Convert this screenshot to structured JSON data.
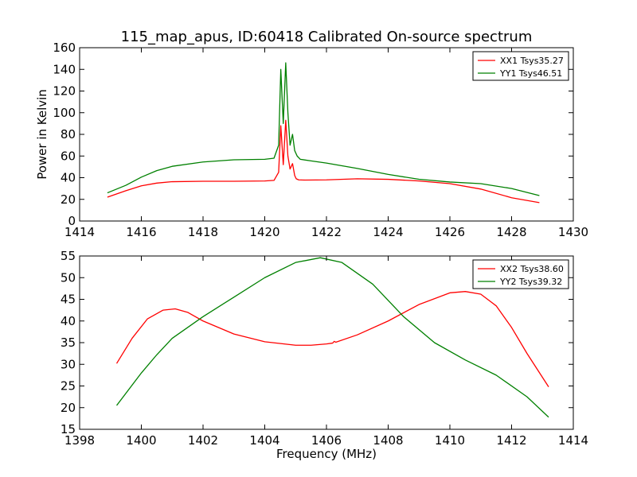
{
  "chart_data": [
    {
      "type": "line",
      "title": "115_map_apus, ID:60418 Calibrated On-source spectrum",
      "xlabel": "",
      "ylabel": "Power in Kelvin",
      "xlim": [
        1414,
        1430
      ],
      "ylim": [
        0,
        160
      ],
      "xticks": [
        "1414",
        "1416",
        "1418",
        "1420",
        "1422",
        "1424",
        "1426",
        "1428",
        "1430"
      ],
      "yticks": [
        "0",
        "20",
        "40",
        "60",
        "80",
        "100",
        "120",
        "140",
        "160"
      ],
      "legend_position": "top-right",
      "series": [
        {
          "name": "XX1 Tsys35.27",
          "color": "#ff0000",
          "x": [
            1414.9,
            1415.5,
            1416,
            1416.5,
            1417,
            1418,
            1419,
            1420,
            1420.3,
            1420.45,
            1420.52,
            1420.6,
            1420.68,
            1420.75,
            1420.82,
            1420.9,
            1420.97,
            1421.02,
            1421.1,
            1421.3,
            1422,
            1423,
            1424,
            1425,
            1426,
            1427,
            1428,
            1428.9
          ],
          "y": [
            22,
            28,
            32.5,
            35,
            36.3,
            36.7,
            36.7,
            37,
            37.5,
            45,
            88,
            52,
            93,
            60,
            48,
            53,
            42,
            39,
            38,
            37.8,
            38,
            39,
            38.5,
            37,
            34.5,
            29.5,
            21.5,
            17
          ]
        },
        {
          "name": "YY1 Tsys46.51",
          "color": "#008000",
          "x": [
            1414.9,
            1415.5,
            1416,
            1416.5,
            1417,
            1418,
            1419,
            1420,
            1420.3,
            1420.45,
            1420.52,
            1420.6,
            1420.68,
            1420.75,
            1420.82,
            1420.9,
            1420.97,
            1421.05,
            1421.15,
            1421.5,
            1422,
            1423,
            1424,
            1425,
            1426,
            1427,
            1428,
            1428.9
          ],
          "y": [
            26,
            33,
            40.5,
            46.5,
            50.5,
            54.5,
            56.5,
            57,
            58,
            70,
            140,
            90,
            146,
            100,
            70,
            80,
            65,
            60,
            57,
            55.5,
            53.5,
            48.5,
            43,
            38.5,
            36,
            34.5,
            30,
            23.5
          ]
        }
      ]
    },
    {
      "type": "line",
      "title": "",
      "xlabel": "Frequency (MHz)",
      "ylabel": "",
      "xlim": [
        1398,
        1414
      ],
      "ylim": [
        15,
        55
      ],
      "xticks": [
        "1398",
        "1400",
        "1402",
        "1404",
        "1406",
        "1408",
        "1410",
        "1412",
        "1414"
      ],
      "yticks": [
        "15",
        "20",
        "25",
        "30",
        "35",
        "40",
        "45",
        "50",
        "55"
      ],
      "legend_position": "top-right",
      "series": [
        {
          "name": "XX2 Tsys38.60",
          "color": "#ff0000",
          "x": [
            1399.2,
            1399.7,
            1400.2,
            1400.7,
            1401.1,
            1401.5,
            1402,
            1403,
            1404,
            1405,
            1405.5,
            1406,
            1406.2,
            1406.25,
            1406.3,
            1407,
            1408,
            1409,
            1410,
            1410.5,
            1411,
            1411.5,
            1412,
            1412.5,
            1413.2
          ],
          "y": [
            30.2,
            36,
            40.5,
            42.5,
            42.8,
            42,
            40,
            37,
            35.2,
            34.4,
            34.4,
            34.7,
            34.9,
            35.3,
            35.1,
            36.8,
            40,
            43.8,
            46.5,
            46.8,
            46.2,
            43.5,
            38.5,
            32.5,
            24.8
          ]
        },
        {
          "name": "YY2 Tsys39.32",
          "color": "#008000",
          "x": [
            1399.2,
            1400,
            1400.5,
            1401,
            1402,
            1403,
            1404,
            1405,
            1405.8,
            1406.5,
            1407.5,
            1408.5,
            1409.5,
            1410.5,
            1411.5,
            1412.5,
            1413.2
          ],
          "y": [
            20.5,
            28,
            32.2,
            36,
            41,
            45.5,
            50,
            53.5,
            54.6,
            53.5,
            48.5,
            41,
            35,
            31,
            27.5,
            22.5,
            17.8
          ]
        }
      ]
    }
  ]
}
